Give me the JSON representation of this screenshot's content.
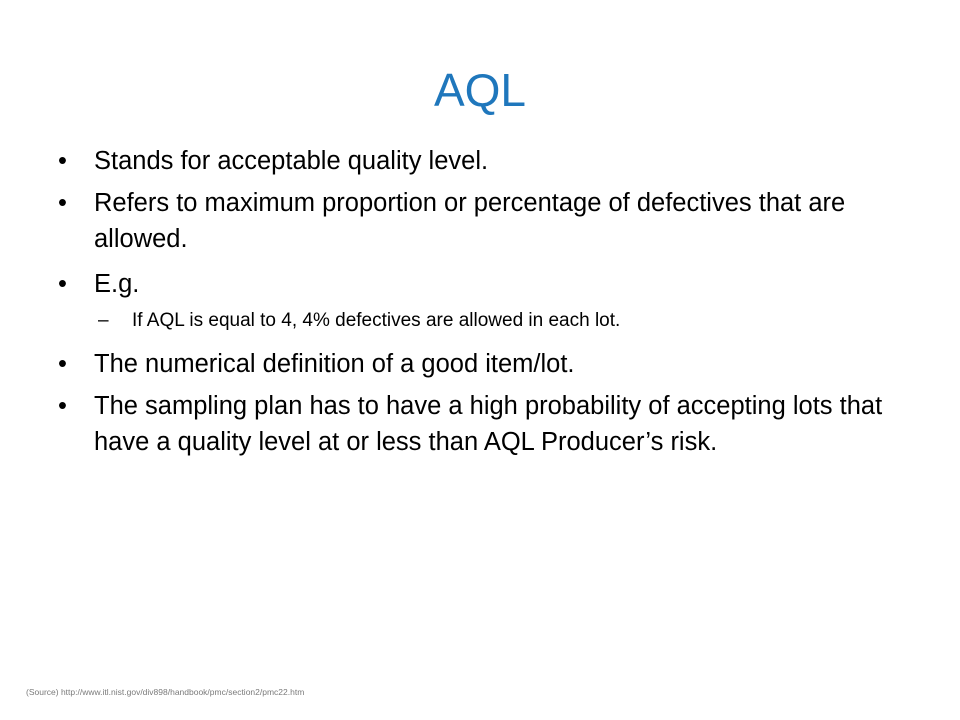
{
  "slide": {
    "title": "AQL",
    "title_color": "#1f77bc",
    "bullet_marker": "•",
    "sub_bullet_marker": "–",
    "bullets": [
      "Stands for acceptable quality level.",
      "Refers to maximum proportion or percentage  of defectives that are allowed.",
      "E.g.",
      "The numerical definition of a good item/lot.",
      "The sampling plan has to have a high probability of accepting lots that have  a quality level at or less than AQL Producer’s risk."
    ],
    "sub_bullets": [
      "If AQL is equal to 4, 4% defectives are allowed in each lot."
    ],
    "source": "(Source) http://www.itl.nist.gov/div898/handbook/pmc/section2/pmc22.htm"
  }
}
